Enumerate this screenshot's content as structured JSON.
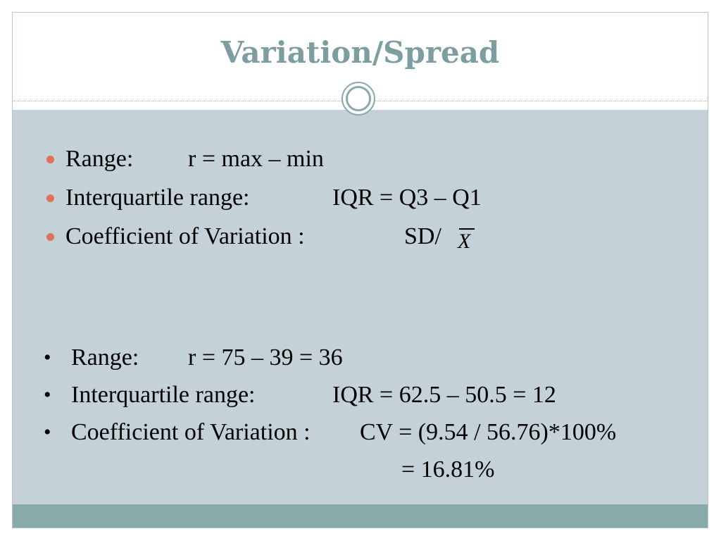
{
  "title": "Variation/Spread",
  "definitions": [
    {
      "label": "Range:",
      "formula": "r = max – min"
    },
    {
      "label": "Interquartile range:",
      "formula": "IQR = Q3 – Q1"
    },
    {
      "label": "Coefficient of Variation :",
      "formula": "SD/",
      "symbol": "X"
    }
  ],
  "examples": [
    {
      "bullet": "•",
      "label": "Range:",
      "formula": "r = 75 – 39 = 36"
    },
    {
      "bullet": "•",
      "label": "Interquartile range:",
      "formula": "IQR = 62.5 – 50.5 = 12"
    },
    {
      "bullet": "•",
      "label": "Coefficient of Variation :",
      "formula": "CV = (9.54 / 56.76)*100%"
    }
  ],
  "example_result": "= 16.81%",
  "colors": {
    "title": "#7d9ea1",
    "body_background": "#c5d1d8",
    "footer": "#89aaab",
    "bullet": "#e0725a"
  }
}
